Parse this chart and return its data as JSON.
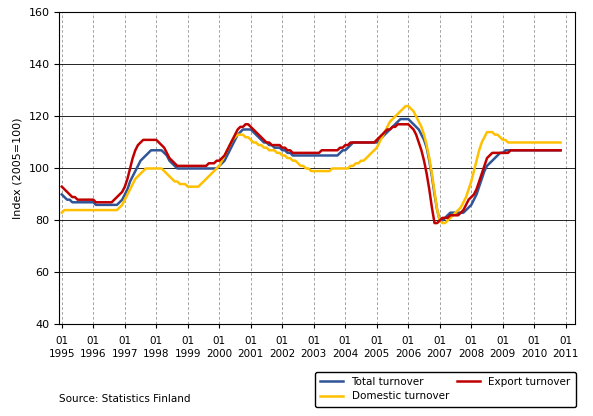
{
  "title": "",
  "ylabel": "Index (2005=100)",
  "source_text": "Source: Statistics Finland",
  "ylim": [
    40,
    160
  ],
  "yticks": [
    40,
    60,
    80,
    100,
    120,
    140,
    160
  ],
  "line_colors": {
    "total": "#2F5597",
    "domestic": "#FFC000",
    "export": "#C00000"
  },
  "line_width": 1.8,
  "total_turnover": [
    90,
    89,
    88,
    88,
    87,
    87,
    87,
    87,
    87,
    87,
    87,
    87,
    87,
    86,
    86,
    86,
    86,
    86,
    86,
    86,
    86,
    86,
    87,
    88,
    90,
    92,
    95,
    97,
    99,
    101,
    103,
    104,
    105,
    106,
    107,
    107,
    107,
    107,
    107,
    106,
    105,
    103,
    102,
    101,
    100,
    100,
    100,
    100,
    100,
    100,
    100,
    100,
    100,
    100,
    100,
    100,
    100,
    100,
    100,
    100,
    101,
    102,
    103,
    105,
    107,
    109,
    111,
    113,
    114,
    115,
    115,
    115,
    115,
    114,
    113,
    112,
    111,
    110,
    110,
    109,
    109,
    108,
    108,
    108,
    107,
    107,
    106,
    106,
    105,
    105,
    105,
    105,
    105,
    105,
    105,
    105,
    105,
    105,
    105,
    105,
    105,
    105,
    105,
    105,
    105,
    105,
    106,
    107,
    107,
    108,
    109,
    110,
    110,
    110,
    110,
    110,
    110,
    110,
    110,
    110,
    110,
    111,
    112,
    113,
    114,
    115,
    116,
    117,
    118,
    119,
    119,
    119,
    119,
    118,
    117,
    116,
    115,
    113,
    111,
    108,
    103,
    97,
    90,
    84,
    80,
    80,
    81,
    82,
    83,
    83,
    83,
    83,
    83,
    83,
    84,
    85,
    86,
    88,
    90,
    93,
    96,
    99,
    101,
    102,
    103,
    104,
    105,
    106,
    106,
    107,
    107,
    107,
    107,
    107,
    107,
    107,
    107,
    107,
    107,
    107,
    107,
    107,
    107,
    107,
    107,
    107,
    107,
    107,
    107,
    107,
    107
  ],
  "domestic_turnover": [
    83,
    84,
    84,
    84,
    84,
    84,
    84,
    84,
    84,
    84,
    84,
    84,
    84,
    84,
    84,
    84,
    84,
    84,
    84,
    84,
    84,
    84,
    85,
    86,
    88,
    90,
    92,
    94,
    96,
    97,
    98,
    99,
    100,
    100,
    100,
    100,
    100,
    100,
    100,
    99,
    98,
    97,
    96,
    95,
    95,
    94,
    94,
    94,
    93,
    93,
    93,
    93,
    93,
    94,
    95,
    96,
    97,
    98,
    99,
    100,
    101,
    103,
    105,
    107,
    109,
    111,
    112,
    113,
    113,
    113,
    112,
    112,
    111,
    110,
    110,
    109,
    109,
    108,
    108,
    107,
    107,
    107,
    106,
    106,
    105,
    105,
    104,
    104,
    103,
    103,
    102,
    101,
    101,
    100,
    100,
    99,
    99,
    99,
    99,
    99,
    99,
    99,
    99,
    100,
    100,
    100,
    100,
    100,
    100,
    100,
    101,
    101,
    102,
    102,
    103,
    103,
    104,
    105,
    106,
    107,
    108,
    110,
    112,
    114,
    116,
    118,
    119,
    120,
    121,
    122,
    123,
    124,
    124,
    123,
    122,
    120,
    118,
    116,
    113,
    109,
    104,
    98,
    91,
    84,
    80,
    79,
    79,
    80,
    81,
    82,
    83,
    84,
    85,
    87,
    89,
    92,
    95,
    99,
    103,
    107,
    110,
    112,
    114,
    114,
    114,
    113,
    113,
    112,
    111,
    111,
    110,
    110,
    110,
    110,
    110,
    110,
    110,
    110,
    110,
    110,
    110,
    110,
    110,
    110,
    110,
    110,
    110,
    110,
    110,
    110,
    110
  ],
  "export_turnover": [
    93,
    92,
    91,
    90,
    89,
    89,
    88,
    88,
    88,
    88,
    88,
    88,
    88,
    87,
    87,
    87,
    87,
    87,
    87,
    87,
    88,
    89,
    90,
    91,
    93,
    96,
    100,
    104,
    107,
    109,
    110,
    111,
    111,
    111,
    111,
    111,
    111,
    110,
    109,
    108,
    106,
    104,
    103,
    102,
    101,
    101,
    101,
    101,
    101,
    101,
    101,
    101,
    101,
    101,
    101,
    101,
    102,
    102,
    102,
    103,
    103,
    104,
    105,
    107,
    109,
    111,
    113,
    115,
    116,
    116,
    117,
    117,
    116,
    115,
    114,
    113,
    112,
    111,
    110,
    110,
    109,
    109,
    109,
    109,
    108,
    108,
    107,
    107,
    106,
    106,
    106,
    106,
    106,
    106,
    106,
    106,
    106,
    106,
    106,
    107,
    107,
    107,
    107,
    107,
    107,
    107,
    108,
    108,
    109,
    109,
    110,
    110,
    110,
    110,
    110,
    110,
    110,
    110,
    110,
    110,
    111,
    112,
    113,
    114,
    115,
    115,
    116,
    116,
    117,
    117,
    117,
    117,
    117,
    116,
    115,
    113,
    110,
    107,
    103,
    98,
    92,
    85,
    79,
    79,
    80,
    81,
    81,
    81,
    82,
    82,
    82,
    82,
    83,
    84,
    86,
    88,
    89,
    90,
    92,
    95,
    98,
    101,
    104,
    105,
    106,
    106,
    106,
    106,
    106,
    106,
    106,
    107,
    107,
    107,
    107,
    107,
    107,
    107,
    107,
    107,
    107,
    107,
    107,
    107,
    107,
    107,
    107,
    107,
    107,
    107,
    107
  ]
}
